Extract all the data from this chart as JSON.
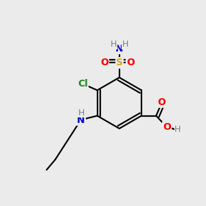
{
  "background_color": "#ebebeb",
  "atom_colors": {
    "C": "#000000",
    "H": "#708090",
    "N": "#0000CD",
    "O": "#FF0000",
    "S": "#DAA520",
    "Cl": "#228B22"
  },
  "bond_color": "#000000",
  "bond_width": 1.6
}
